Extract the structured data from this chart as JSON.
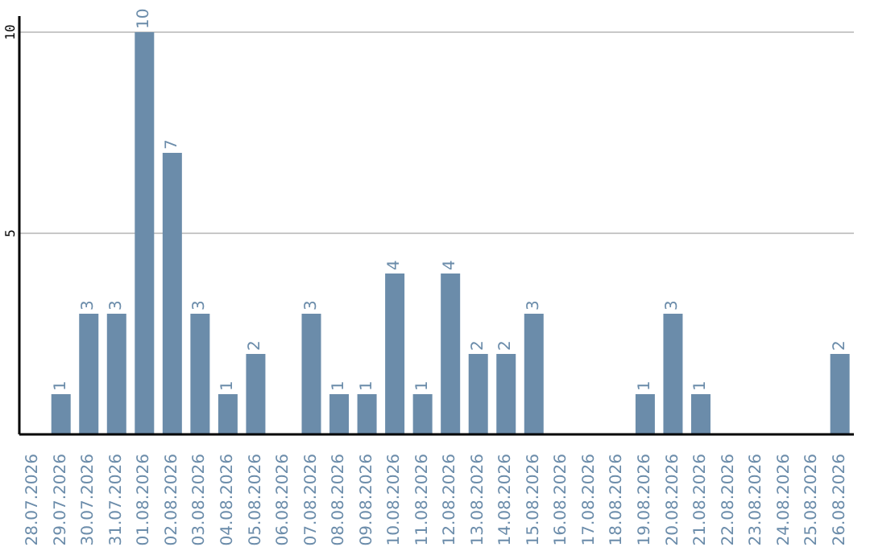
{
  "chart_data": {
    "type": "bar",
    "categories": [
      "28.07.2026",
      "29.07.2026",
      "30.07.2026",
      "31.07.2026",
      "01.08.2026",
      "02.08.2026",
      "03.08.2026",
      "04.08.2026",
      "05.08.2026",
      "06.08.2026",
      "07.08.2026",
      "08.08.2026",
      "09.08.2026",
      "10.08.2026",
      "11.08.2026",
      "12.08.2026",
      "13.08.2026",
      "14.08.2026",
      "15.08.2026",
      "16.08.2026",
      "17.08.2026",
      "18.08.2026",
      "19.08.2026",
      "20.08.2026",
      "21.08.2026",
      "22.08.2026",
      "23.08.2026",
      "24.08.2026",
      "25.08.2026",
      "26.08.2026"
    ],
    "values": [
      0,
      1,
      3,
      3,
      10,
      7,
      3,
      1,
      2,
      0,
      3,
      1,
      1,
      4,
      1,
      4,
      2,
      2,
      3,
      0,
      0,
      0,
      1,
      3,
      1,
      0,
      0,
      0,
      0,
      2
    ],
    "value_labels": [
      null,
      "1",
      "3",
      "3",
      "10",
      "7",
      "3",
      "1",
      "2",
      null,
      "3",
      "1",
      "1",
      "4",
      "1",
      "4",
      "2",
      "2",
      "3",
      null,
      null,
      null,
      "1",
      "3",
      "1",
      null,
      null,
      null,
      null,
      "2"
    ],
    "color": "#6b8caa",
    "ylim": [
      0,
      10.4
    ],
    "yticks": [
      5,
      10
    ],
    "grid": "y",
    "legend": false
  }
}
